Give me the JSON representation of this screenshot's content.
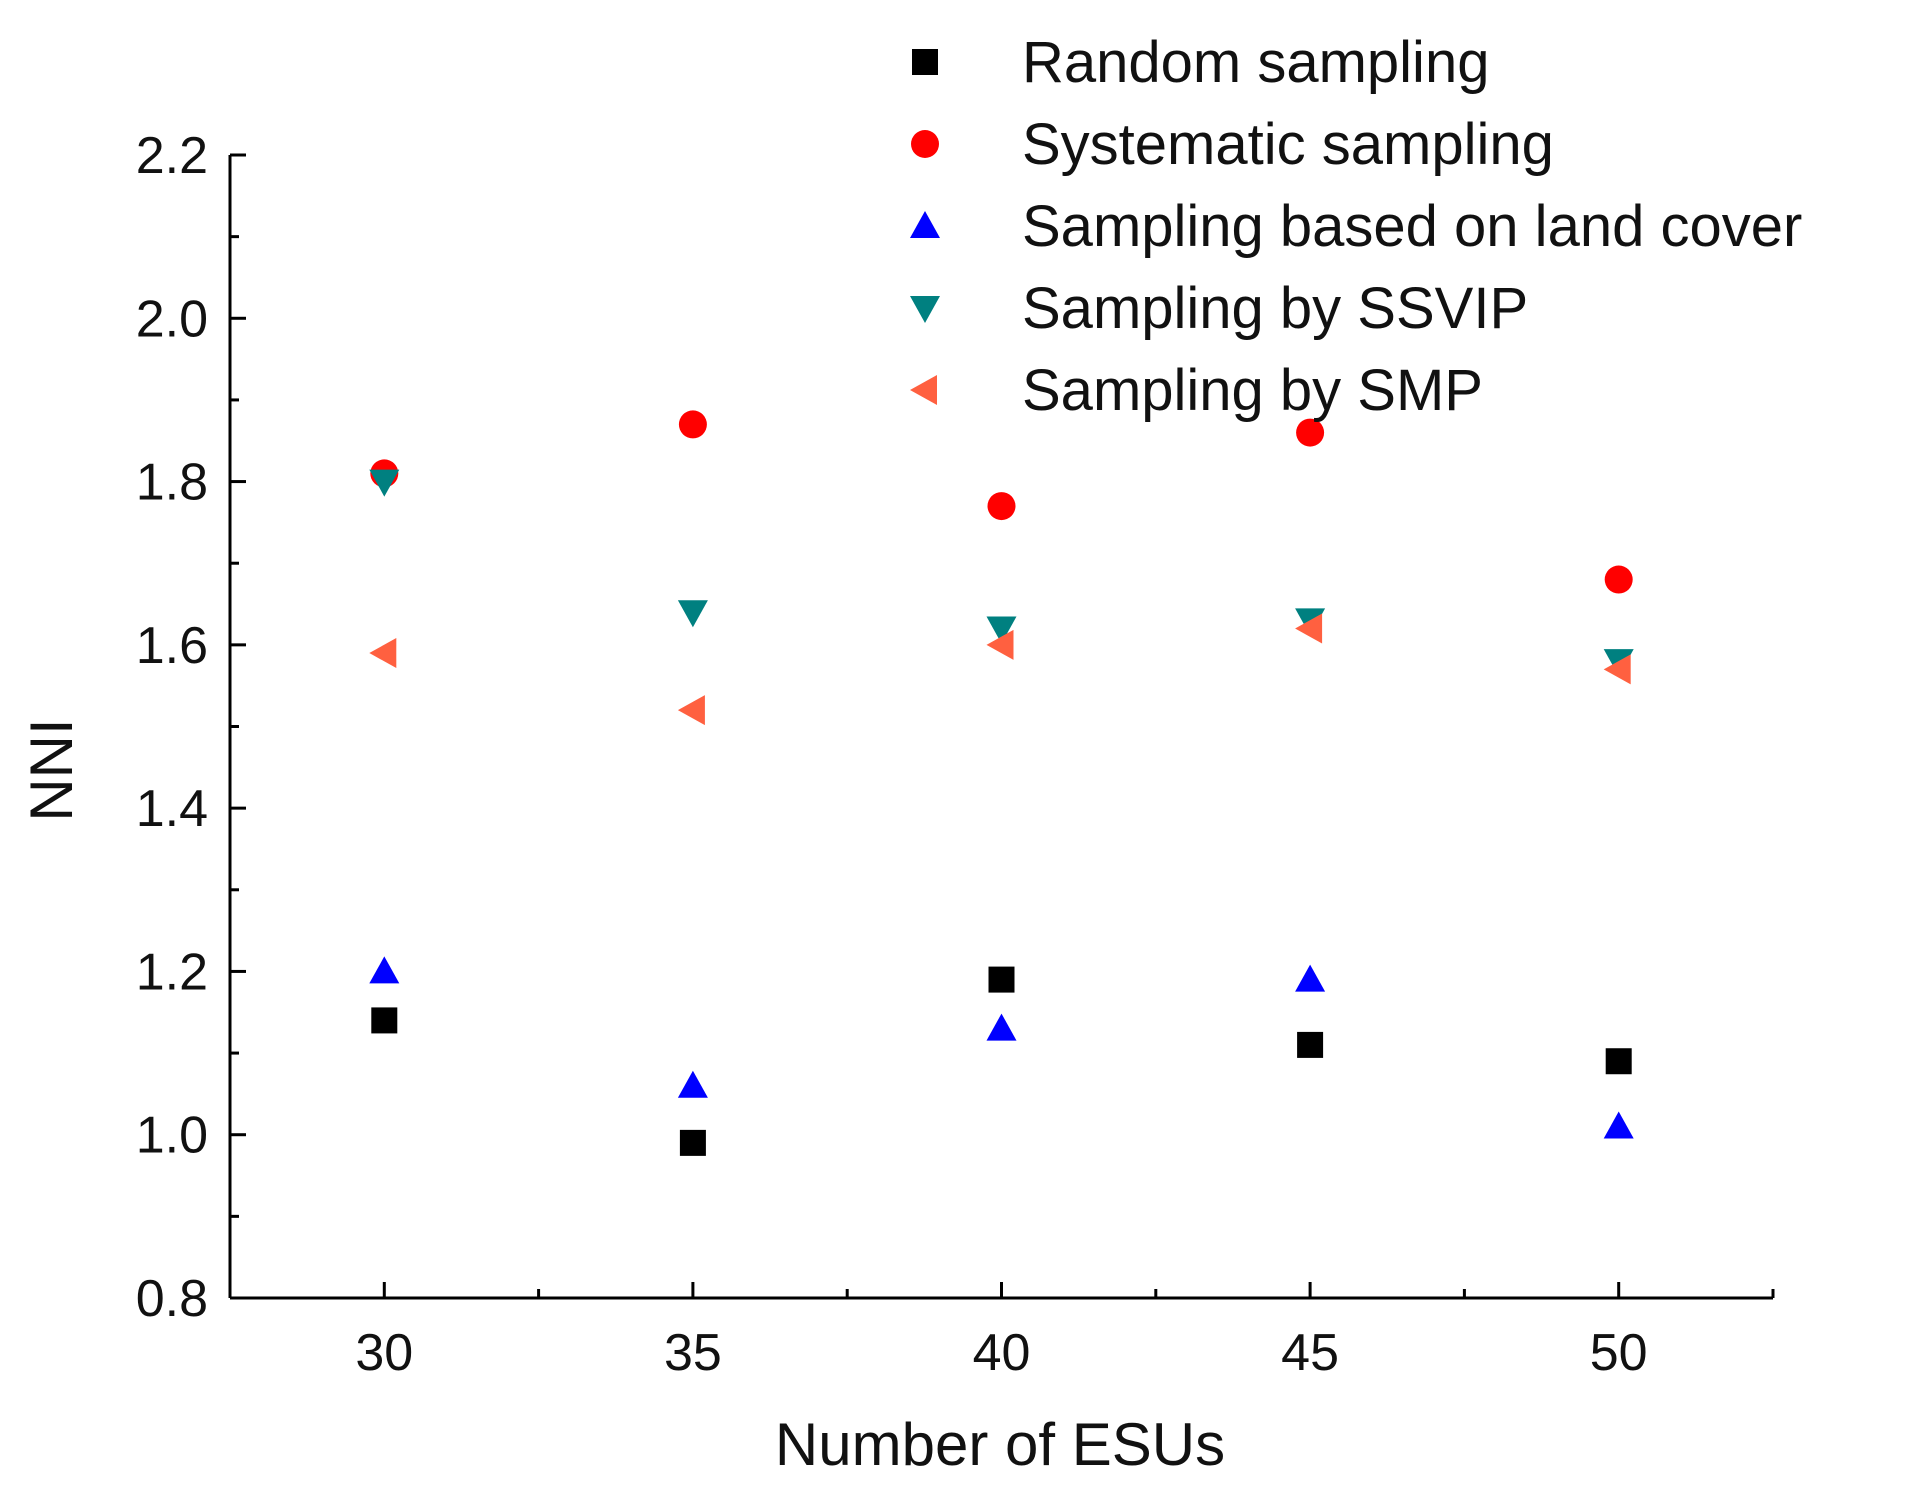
{
  "chart_data": {
    "type": "scatter",
    "title": "",
    "xlabel": "Number of ESUs",
    "ylabel": "NNI",
    "x_ticks": [
      "30",
      "35",
      "40",
      "45",
      "50"
    ],
    "y_ticks": [
      "0.8",
      "1.0",
      "1.2",
      "1.4",
      "1.6",
      "1.8",
      "2.0",
      "2.2"
    ],
    "xlim": [
      27.5,
      52.5
    ],
    "ylim": [
      0.8,
      2.2
    ],
    "grid": false,
    "legend_position": "top-right",
    "series": [
      {
        "name": "Random sampling",
        "marker": "square",
        "color": "#000000",
        "points": [
          {
            "x": 30,
            "y": 1.14
          },
          {
            "x": 35,
            "y": 0.99
          },
          {
            "x": 40,
            "y": 1.19
          },
          {
            "x": 45,
            "y": 1.11
          },
          {
            "x": 50,
            "y": 1.09
          }
        ]
      },
      {
        "name": "Systematic sampling",
        "marker": "circle",
        "color": "#ff0000",
        "points": [
          {
            "x": 30,
            "y": 1.81
          },
          {
            "x": 35,
            "y": 1.87
          },
          {
            "x": 40,
            "y": 1.77
          },
          {
            "x": 45,
            "y": 1.86
          },
          {
            "x": 50,
            "y": 1.68
          }
        ]
      },
      {
        "name": "Sampling based on land cover",
        "marker": "triangle-up",
        "color": "#0000ff",
        "points": [
          {
            "x": 30,
            "y": 1.2
          },
          {
            "x": 35,
            "y": 1.06
          },
          {
            "x": 40,
            "y": 1.13
          },
          {
            "x": 45,
            "y": 1.19
          },
          {
            "x": 50,
            "y": 1.01
          }
        ]
      },
      {
        "name": "Sampling by SSVIP",
        "marker": "triangle-down",
        "color": "#008080",
        "points": [
          {
            "x": 30,
            "y": 1.8
          },
          {
            "x": 35,
            "y": 1.64
          },
          {
            "x": 40,
            "y": 1.62
          },
          {
            "x": 45,
            "y": 1.63
          },
          {
            "x": 50,
            "y": 1.58
          }
        ]
      },
      {
        "name": "Sampling by SMP",
        "marker": "triangle-left",
        "color": "#ff6040",
        "points": [
          {
            "x": 30,
            "y": 1.59
          },
          {
            "x": 35,
            "y": 1.52
          },
          {
            "x": 40,
            "y": 1.6
          },
          {
            "x": 45,
            "y": 1.62
          },
          {
            "x": 50,
            "y": 1.57
          }
        ]
      }
    ]
  }
}
